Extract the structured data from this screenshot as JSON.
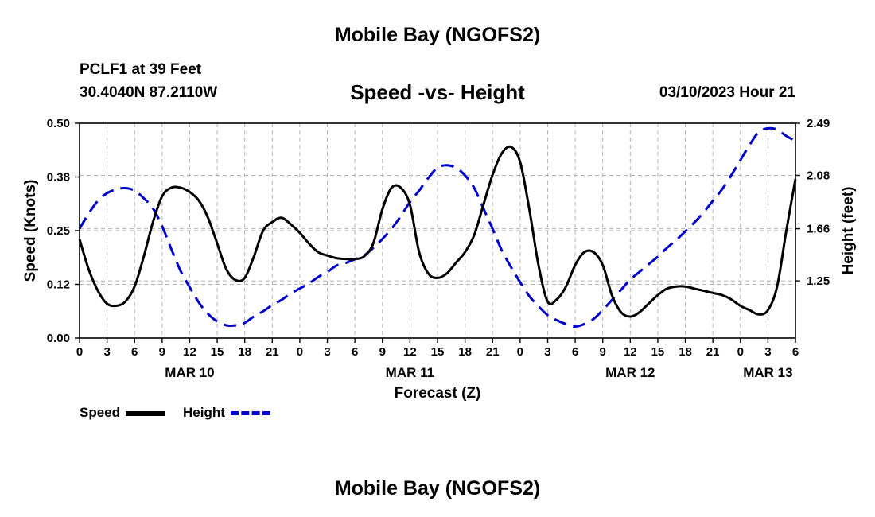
{
  "page": {
    "title": "Mobile Bay (NGOFS2)",
    "station": "PCLF1 at 39 Feet",
    "coordinates": "30.4040N  87.2110W",
    "subtitle": "Speed -vs- Height",
    "datetime": "03/10/2023 Hour 21",
    "footer_title": "Mobile Bay (NGOFS2)"
  },
  "chart_data": {
    "type": "line",
    "title": "Speed -vs- Height",
    "xlabel": "Forecast (Z)",
    "ylabel": "Speed (Knots)",
    "y2label": "Height (feet)",
    "x_range_hours": [
      0,
      78
    ],
    "ylim": [
      0,
      0.5
    ],
    "y2lim": [
      0.8,
      2.49
    ],
    "yticks": [
      "0.00",
      "0.12",
      "0.25",
      "0.38",
      "0.50"
    ],
    "y2ticks": [
      "1.25",
      "1.66",
      "2.08",
      "2.49"
    ],
    "xtick_labels": [
      "0",
      "3",
      "6",
      "9",
      "12",
      "15",
      "18",
      "21",
      "0",
      "3",
      "6",
      "9",
      "12",
      "15",
      "18",
      "21",
      "0",
      "3",
      "6",
      "9",
      "12",
      "15",
      "18",
      "21",
      "0",
      "3",
      "6"
    ],
    "date_labels": [
      {
        "label": "MAR 10",
        "hour": 12
      },
      {
        "label": "MAR 11",
        "hour": 36
      },
      {
        "label": "MAR 12",
        "hour": 60
      },
      {
        "label": "MAR 13",
        "hour": 75
      }
    ],
    "grid": true,
    "legend": "bottom-left",
    "series": [
      {
        "name": "Speed",
        "axis": "left",
        "color": "#000000",
        "style": "solid",
        "points": [
          [
            0,
            0.23
          ],
          [
            1,
            0.16
          ],
          [
            2,
            0.11
          ],
          [
            3,
            0.08
          ],
          [
            4,
            0.075
          ],
          [
            5,
            0.085
          ],
          [
            6,
            0.12
          ],
          [
            7,
            0.19
          ],
          [
            8,
            0.27
          ],
          [
            9,
            0.33
          ],
          [
            10,
            0.35
          ],
          [
            11,
            0.35
          ],
          [
            12,
            0.34
          ],
          [
            13,
            0.32
          ],
          [
            14,
            0.28
          ],
          [
            15,
            0.22
          ],
          [
            16,
            0.16
          ],
          [
            17,
            0.135
          ],
          [
            18,
            0.14
          ],
          [
            19,
            0.19
          ],
          [
            20,
            0.25
          ],
          [
            21,
            0.27
          ],
          [
            22,
            0.28
          ],
          [
            23,
            0.265
          ],
          [
            24,
            0.245
          ],
          [
            25,
            0.22
          ],
          [
            26,
            0.2
          ],
          [
            27,
            0.192
          ],
          [
            28,
            0.186
          ],
          [
            29,
            0.184
          ],
          [
            30,
            0.184
          ],
          [
            31,
            0.19
          ],
          [
            32,
            0.22
          ],
          [
            33,
            0.3
          ],
          [
            34,
            0.35
          ],
          [
            35,
            0.35
          ],
          [
            36,
            0.31
          ],
          [
            37,
            0.2
          ],
          [
            38,
            0.15
          ],
          [
            39,
            0.14
          ],
          [
            40,
            0.15
          ],
          [
            41,
            0.175
          ],
          [
            42,
            0.2
          ],
          [
            43,
            0.24
          ],
          [
            44,
            0.31
          ],
          [
            45,
            0.38
          ],
          [
            46,
            0.43
          ],
          [
            47,
            0.445
          ],
          [
            48,
            0.41
          ],
          [
            49,
            0.3
          ],
          [
            50,
            0.17
          ],
          [
            51,
            0.085
          ],
          [
            52,
            0.09
          ],
          [
            53,
            0.12
          ],
          [
            54,
            0.17
          ],
          [
            55,
            0.2
          ],
          [
            56,
            0.2
          ],
          [
            57,
            0.17
          ],
          [
            58,
            0.1
          ],
          [
            59,
            0.06
          ],
          [
            60,
            0.05
          ],
          [
            61,
            0.06
          ],
          [
            62,
            0.08
          ],
          [
            63,
            0.1
          ],
          [
            64,
            0.115
          ],
          [
            65,
            0.12
          ],
          [
            66,
            0.12
          ],
          [
            67,
            0.115
          ],
          [
            68,
            0.11
          ],
          [
            69,
            0.105
          ],
          [
            70,
            0.1
          ],
          [
            71,
            0.09
          ],
          [
            72,
            0.075
          ],
          [
            73,
            0.065
          ],
          [
            74,
            0.055
          ],
          [
            75,
            0.065
          ],
          [
            76,
            0.12
          ],
          [
            77,
            0.25
          ],
          [
            78,
            0.37
          ]
        ]
      },
      {
        "name": "Height",
        "axis": "right",
        "color": "#0000cc",
        "style": "dashed",
        "points": [
          [
            0,
            1.66
          ],
          [
            1,
            1.78
          ],
          [
            2,
            1.88
          ],
          [
            3,
            1.94
          ],
          [
            4,
            1.97
          ],
          [
            5,
            1.98
          ],
          [
            6,
            1.96
          ],
          [
            7,
            1.9
          ],
          [
            8,
            1.82
          ],
          [
            9,
            1.68
          ],
          [
            10,
            1.5
          ],
          [
            11,
            1.33
          ],
          [
            12,
            1.2
          ],
          [
            13,
            1.08
          ],
          [
            14,
            0.99
          ],
          [
            15,
            0.93
          ],
          [
            16,
            0.9
          ],
          [
            17,
            0.9
          ],
          [
            18,
            0.92
          ],
          [
            19,
            0.97
          ],
          [
            20,
            1.01
          ],
          [
            21,
            1.06
          ],
          [
            22,
            1.1
          ],
          [
            23,
            1.15
          ],
          [
            24,
            1.19
          ],
          [
            25,
            1.23
          ],
          [
            26,
            1.28
          ],
          [
            27,
            1.32
          ],
          [
            28,
            1.37
          ],
          [
            29,
            1.39
          ],
          [
            30,
            1.42
          ],
          [
            31,
            1.45
          ],
          [
            32,
            1.51
          ],
          [
            33,
            1.58
          ],
          [
            34,
            1.66
          ],
          [
            35,
            1.76
          ],
          [
            36,
            1.87
          ],
          [
            37,
            1.96
          ],
          [
            38,
            2.06
          ],
          [
            39,
            2.14
          ],
          [
            40,
            2.16
          ],
          [
            41,
            2.14
          ],
          [
            42,
            2.08
          ],
          [
            43,
            1.98
          ],
          [
            44,
            1.82
          ],
          [
            45,
            1.66
          ],
          [
            46,
            1.49
          ],
          [
            47,
            1.36
          ],
          [
            48,
            1.24
          ],
          [
            49,
            1.13
          ],
          [
            50,
            1.05
          ],
          [
            51,
            0.98
          ],
          [
            52,
            0.94
          ],
          [
            53,
            0.91
          ],
          [
            54,
            0.89
          ],
          [
            55,
            0.91
          ],
          [
            56,
            0.95
          ],
          [
            57,
            1.02
          ],
          [
            58,
            1.1
          ],
          [
            59,
            1.18
          ],
          [
            60,
            1.26
          ],
          [
            61,
            1.32
          ],
          [
            62,
            1.38
          ],
          [
            63,
            1.44
          ],
          [
            64,
            1.51
          ],
          [
            65,
            1.57
          ],
          [
            66,
            1.64
          ],
          [
            67,
            1.71
          ],
          [
            68,
            1.79
          ],
          [
            69,
            1.88
          ],
          [
            70,
            1.97
          ],
          [
            71,
            2.08
          ],
          [
            72,
            2.2
          ],
          [
            73,
            2.32
          ],
          [
            74,
            2.42
          ],
          [
            75,
            2.45
          ],
          [
            76,
            2.44
          ],
          [
            77,
            2.39
          ],
          [
            78,
            2.35
          ]
        ]
      }
    ]
  }
}
